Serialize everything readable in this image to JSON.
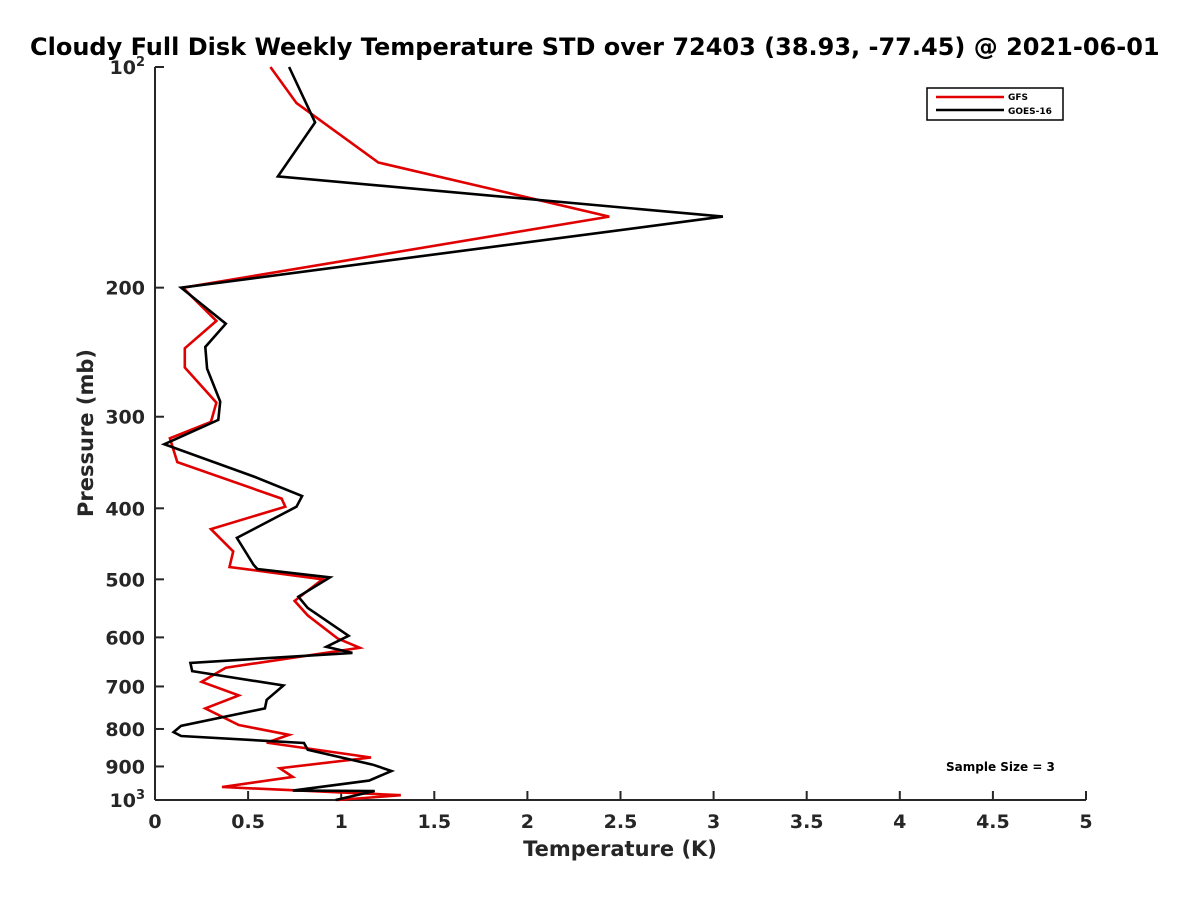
{
  "chart_data": {
    "type": "line",
    "title": "Cloudy Full Disk Weekly Temperature STD over 72403 (38.93, -77.45) @ 2021-06-01",
    "xlabel": "Temperature (K)",
    "ylabel": "Pressure (mb)",
    "xlim": [
      0,
      5
    ],
    "ylim": [
      100,
      1000
    ],
    "y_scale": "log",
    "y_reversed": true,
    "x_ticks": [
      "0",
      "0.5",
      "1",
      "1.5",
      "2",
      "2.5",
      "3",
      "3.5",
      "4",
      "4.5",
      "5"
    ],
    "y_ticks": [
      {
        "value": 100,
        "base": "10",
        "exp": "2"
      },
      {
        "value": 200,
        "label": "200"
      },
      {
        "value": 300,
        "label": "300"
      },
      {
        "value": 400,
        "label": "400"
      },
      {
        "value": 500,
        "label": "500"
      },
      {
        "value": 600,
        "label": "600"
      },
      {
        "value": 700,
        "label": "700"
      },
      {
        "value": 800,
        "label": "800"
      },
      {
        "value": 900,
        "label": "900"
      },
      {
        "value": 1000,
        "base": "10",
        "exp": "3"
      }
    ],
    "legend_position": "top-right",
    "grid": false,
    "series": [
      {
        "name": "GFS",
        "color": "#e00000",
        "x": [
          0.62,
          0.76,
          1.2,
          2.44,
          0.15,
          0.33,
          0.16,
          0.16,
          0.33,
          0.3,
          0.08,
          0.12,
          0.68,
          0.7,
          0.3,
          0.42,
          0.4,
          0.9,
          0.75,
          0.82,
          0.98,
          1.1,
          0.38,
          0.25,
          0.45,
          0.27,
          0.45,
          0.72,
          0.6,
          1.16,
          0.67,
          0.74,
          0.36,
          1.32,
          0.98
        ],
        "y": [
          100,
          112,
          135,
          160,
          200,
          222,
          242,
          257,
          287,
          305,
          321,
          346,
          388,
          398,
          427,
          458,
          481,
          500,
          535,
          560,
          602,
          620,
          660,
          690,
          720,
          750,
          790,
          815,
          835,
          875,
          905,
          930,
          960,
          985,
          1000
        ]
      },
      {
        "name": "GOES-16",
        "color": "#000000",
        "x": [
          0.72,
          0.86,
          0.66,
          3.05,
          0.14,
          0.38,
          0.27,
          0.28,
          0.35,
          0.34,
          0.05,
          0.53,
          0.79,
          0.76,
          0.44,
          0.53,
          0.55,
          0.94,
          0.77,
          0.82,
          1.04,
          0.92,
          1.06,
          0.19,
          0.2,
          0.69,
          0.6,
          0.59,
          0.14,
          0.1,
          0.14,
          0.8,
          0.82,
          1.17,
          1.27,
          1.15,
          0.74,
          1.18,
          0.97
        ],
        "y": [
          100,
          119,
          141,
          160,
          200,
          224,
          241,
          258,
          286,
          303,
          327,
          362,
          385,
          398,
          439,
          478,
          484,
          497,
          528,
          547,
          597,
          618,
          630,
          650,
          667,
          698,
          730,
          750,
          792,
          808,
          818,
          836,
          854,
          895,
          913,
          941,
          971,
          972,
          1000
        ]
      }
    ],
    "annotations": [
      "Sample Size = 3"
    ]
  }
}
